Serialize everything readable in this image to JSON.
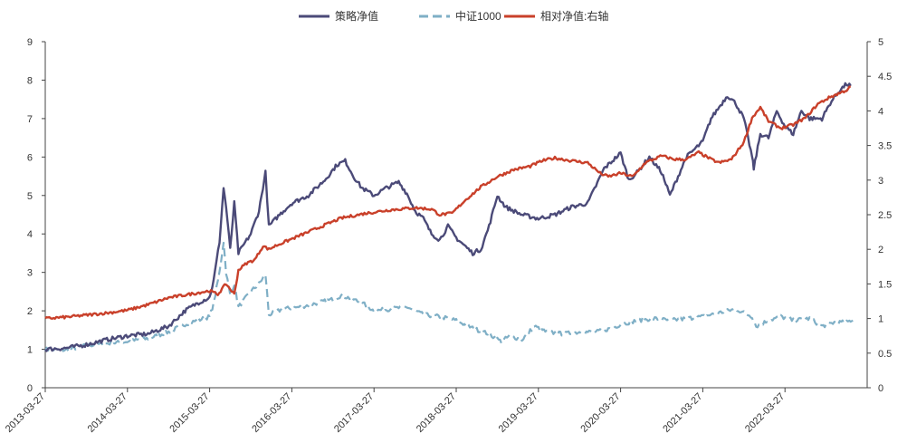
{
  "chart_data": {
    "type": "line",
    "title": "",
    "x_labels": [
      "2013-03-27",
      "2014-03-27",
      "2015-03-27",
      "2016-03-27",
      "2017-03-27",
      "2018-03-27",
      "2019-03-27",
      "2020-03-27",
      "2021-03-27",
      "2022-03-27"
    ],
    "x_range": [
      "2013-03-27",
      "2023-03-27"
    ],
    "y_left": {
      "range": [
        0,
        9
      ],
      "ticks": [
        "0",
        "1",
        "2",
        "3",
        "4",
        "5",
        "6",
        "7",
        "8",
        "9"
      ]
    },
    "y_right": {
      "range": [
        0,
        5
      ],
      "ticks": [
        "0",
        "0.5",
        "1",
        "1.5",
        "2",
        "2.5",
        "3",
        "3.5",
        "4",
        "4.5",
        "5"
      ]
    },
    "legend": {
      "position": "top-center"
    },
    "series": [
      {
        "name": "策略净值",
        "axis": "left",
        "color": "#4B4A78",
        "style": "solid",
        "points": [
          [
            0,
            1.0
          ],
          [
            0.25,
            1.03
          ],
          [
            0.5,
            1.12
          ],
          [
            0.75,
            1.25
          ],
          [
            1.0,
            1.35
          ],
          [
            1.25,
            1.4
          ],
          [
            1.5,
            1.6
          ],
          [
            1.7,
            2.0
          ],
          [
            1.85,
            2.2
          ],
          [
            2.0,
            2.35
          ],
          [
            2.05,
            2.8
          ],
          [
            2.12,
            3.8
          ],
          [
            2.17,
            5.2
          ],
          [
            2.2,
            4.7
          ],
          [
            2.25,
            3.6
          ],
          [
            2.3,
            4.8
          ],
          [
            2.35,
            3.5
          ],
          [
            2.5,
            4.0
          ],
          [
            2.6,
            4.6
          ],
          [
            2.68,
            5.6
          ],
          [
            2.72,
            4.2
          ],
          [
            2.85,
            4.5
          ],
          [
            3.0,
            4.8
          ],
          [
            3.2,
            5.0
          ],
          [
            3.4,
            5.4
          ],
          [
            3.55,
            5.8
          ],
          [
            3.65,
            5.9
          ],
          [
            3.75,
            5.5
          ],
          [
            3.85,
            5.2
          ],
          [
            4.0,
            5.0
          ],
          [
            4.15,
            5.2
          ],
          [
            4.3,
            5.35
          ],
          [
            4.4,
            5.05
          ],
          [
            4.5,
            4.6
          ],
          [
            4.6,
            4.4
          ],
          [
            4.7,
            4.0
          ],
          [
            4.8,
            3.85
          ],
          [
            4.9,
            4.2
          ],
          [
            5.0,
            3.9
          ],
          [
            5.1,
            3.7
          ],
          [
            5.2,
            3.5
          ],
          [
            5.3,
            3.6
          ],
          [
            5.4,
            4.2
          ],
          [
            5.5,
            5.0
          ],
          [
            5.6,
            4.7
          ],
          [
            5.8,
            4.5
          ],
          [
            6.0,
            4.4
          ],
          [
            6.2,
            4.5
          ],
          [
            6.4,
            4.7
          ],
          [
            6.6,
            4.8
          ],
          [
            6.8,
            5.7
          ],
          [
            7.0,
            6.1
          ],
          [
            7.1,
            5.4
          ],
          [
            7.2,
            5.6
          ],
          [
            7.35,
            6.0
          ],
          [
            7.5,
            5.6
          ],
          [
            7.6,
            5.0
          ],
          [
            7.7,
            5.5
          ],
          [
            7.8,
            6.0
          ],
          [
            8.0,
            6.4
          ],
          [
            8.1,
            7.0
          ],
          [
            8.3,
            7.6
          ],
          [
            8.4,
            7.4
          ],
          [
            8.5,
            7.0
          ],
          [
            8.6,
            6.0
          ],
          [
            8.62,
            5.7
          ],
          [
            8.7,
            6.6
          ],
          [
            8.8,
            6.5
          ],
          [
            8.9,
            7.2
          ],
          [
            9.0,
            6.8
          ],
          [
            9.1,
            6.6
          ],
          [
            9.2,
            7.2
          ],
          [
            9.3,
            7.0
          ],
          [
            9.45,
            7.0
          ],
          [
            9.55,
            7.4
          ],
          [
            9.65,
            7.7
          ],
          [
            9.75,
            7.9
          ],
          [
            9.8,
            7.85
          ]
        ]
      },
      {
        "name": "中证1000",
        "axis": "left",
        "color": "#7FAFC6",
        "style": "dashed",
        "points": [
          [
            0,
            1.0
          ],
          [
            0.25,
            0.98
          ],
          [
            0.5,
            1.1
          ],
          [
            0.75,
            1.15
          ],
          [
            1.0,
            1.2
          ],
          [
            1.25,
            1.28
          ],
          [
            1.5,
            1.45
          ],
          [
            1.7,
            1.65
          ],
          [
            1.85,
            1.75
          ],
          [
            2.0,
            1.85
          ],
          [
            2.05,
            2.2
          ],
          [
            2.12,
            3.0
          ],
          [
            2.17,
            3.8
          ],
          [
            2.2,
            3.0
          ],
          [
            2.25,
            2.4
          ],
          [
            2.3,
            2.7
          ],
          [
            2.35,
            2.1
          ],
          [
            2.5,
            2.5
          ],
          [
            2.6,
            2.7
          ],
          [
            2.68,
            2.95
          ],
          [
            2.72,
            1.9
          ],
          [
            2.9,
            2.05
          ],
          [
            3.1,
            2.1
          ],
          [
            3.3,
            2.2
          ],
          [
            3.5,
            2.3
          ],
          [
            3.6,
            2.4
          ],
          [
            3.75,
            2.3
          ],
          [
            3.9,
            2.15
          ],
          [
            4.0,
            2.0
          ],
          [
            4.2,
            2.05
          ],
          [
            4.4,
            2.1
          ],
          [
            4.6,
            1.9
          ],
          [
            4.8,
            1.85
          ],
          [
            5.0,
            1.75
          ],
          [
            5.2,
            1.55
          ],
          [
            5.4,
            1.4
          ],
          [
            5.55,
            1.2
          ],
          [
            5.65,
            1.35
          ],
          [
            5.8,
            1.25
          ],
          [
            5.95,
            1.6
          ],
          [
            6.1,
            1.45
          ],
          [
            6.3,
            1.4
          ],
          [
            6.5,
            1.45
          ],
          [
            6.7,
            1.45
          ],
          [
            6.9,
            1.55
          ],
          [
            7.0,
            1.65
          ],
          [
            7.2,
            1.75
          ],
          [
            7.4,
            1.8
          ],
          [
            7.6,
            1.75
          ],
          [
            7.8,
            1.8
          ],
          [
            8.0,
            1.85
          ],
          [
            8.2,
            1.95
          ],
          [
            8.4,
            2.05
          ],
          [
            8.6,
            1.85
          ],
          [
            8.65,
            1.6
          ],
          [
            8.8,
            1.75
          ],
          [
            8.95,
            1.85
          ],
          [
            9.1,
            1.75
          ],
          [
            9.3,
            1.8
          ],
          [
            9.45,
            1.6
          ],
          [
            9.6,
            1.7
          ],
          [
            9.75,
            1.7
          ],
          [
            9.85,
            1.8
          ]
        ]
      },
      {
        "name": "相对净值:右轴",
        "axis": "right",
        "color": "#C9402A",
        "style": "solid",
        "points": [
          [
            0,
            1.0
          ],
          [
            0.25,
            1.02
          ],
          [
            0.5,
            1.05
          ],
          [
            0.75,
            1.08
          ],
          [
            1.0,
            1.12
          ],
          [
            1.25,
            1.2
          ],
          [
            1.5,
            1.3
          ],
          [
            1.75,
            1.35
          ],
          [
            2.0,
            1.4
          ],
          [
            2.1,
            1.35
          ],
          [
            2.2,
            1.5
          ],
          [
            2.3,
            1.35
          ],
          [
            2.35,
            1.7
          ],
          [
            2.45,
            1.8
          ],
          [
            2.55,
            1.85
          ],
          [
            2.65,
            2.05
          ],
          [
            2.72,
            2.0
          ],
          [
            2.8,
            2.05
          ],
          [
            3.0,
            2.15
          ],
          [
            3.3,
            2.3
          ],
          [
            3.6,
            2.45
          ],
          [
            3.9,
            2.52
          ],
          [
            4.2,
            2.57
          ],
          [
            4.5,
            2.6
          ],
          [
            4.7,
            2.58
          ],
          [
            4.8,
            2.5
          ],
          [
            4.95,
            2.52
          ],
          [
            5.1,
            2.7
          ],
          [
            5.3,
            2.9
          ],
          [
            5.5,
            3.05
          ],
          [
            5.7,
            3.15
          ],
          [
            5.9,
            3.2
          ],
          [
            6.05,
            3.28
          ],
          [
            6.2,
            3.32
          ],
          [
            6.4,
            3.28
          ],
          [
            6.6,
            3.25
          ],
          [
            6.75,
            3.1
          ],
          [
            6.85,
            3.05
          ],
          [
            7.0,
            3.1
          ],
          [
            7.15,
            3.05
          ],
          [
            7.3,
            3.25
          ],
          [
            7.5,
            3.35
          ],
          [
            7.65,
            3.3
          ],
          [
            7.8,
            3.3
          ],
          [
            7.95,
            3.4
          ],
          [
            8.1,
            3.3
          ],
          [
            8.2,
            3.25
          ],
          [
            8.35,
            3.3
          ],
          [
            8.5,
            3.55
          ],
          [
            8.6,
            3.9
          ],
          [
            8.7,
            4.05
          ],
          [
            8.8,
            3.85
          ],
          [
            8.95,
            3.75
          ],
          [
            9.1,
            3.8
          ],
          [
            9.25,
            3.9
          ],
          [
            9.4,
            4.1
          ],
          [
            9.55,
            4.2
          ],
          [
            9.65,
            4.25
          ],
          [
            9.75,
            4.3
          ],
          [
            9.8,
            4.35
          ]
        ]
      }
    ]
  }
}
